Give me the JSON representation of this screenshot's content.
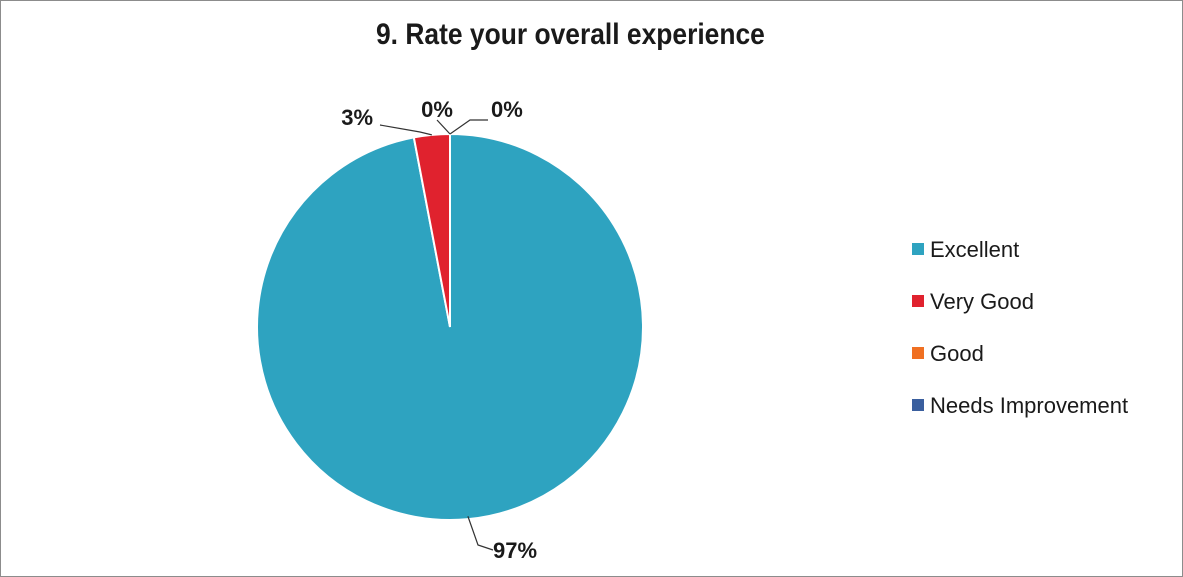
{
  "chart_data": {
    "type": "pie",
    "title": "9. Rate your overall experience",
    "categories": [
      "Excellent",
      "Very Good",
      "Good",
      "Needs Improvement"
    ],
    "values": [
      97,
      3,
      0,
      0
    ],
    "data_labels": [
      "97%",
      "3%",
      "0%",
      "0%"
    ],
    "colors": [
      "#2ea3c0",
      "#e0222e",
      "#f07022",
      "#3a5f9e"
    ],
    "legend_position": "right"
  }
}
